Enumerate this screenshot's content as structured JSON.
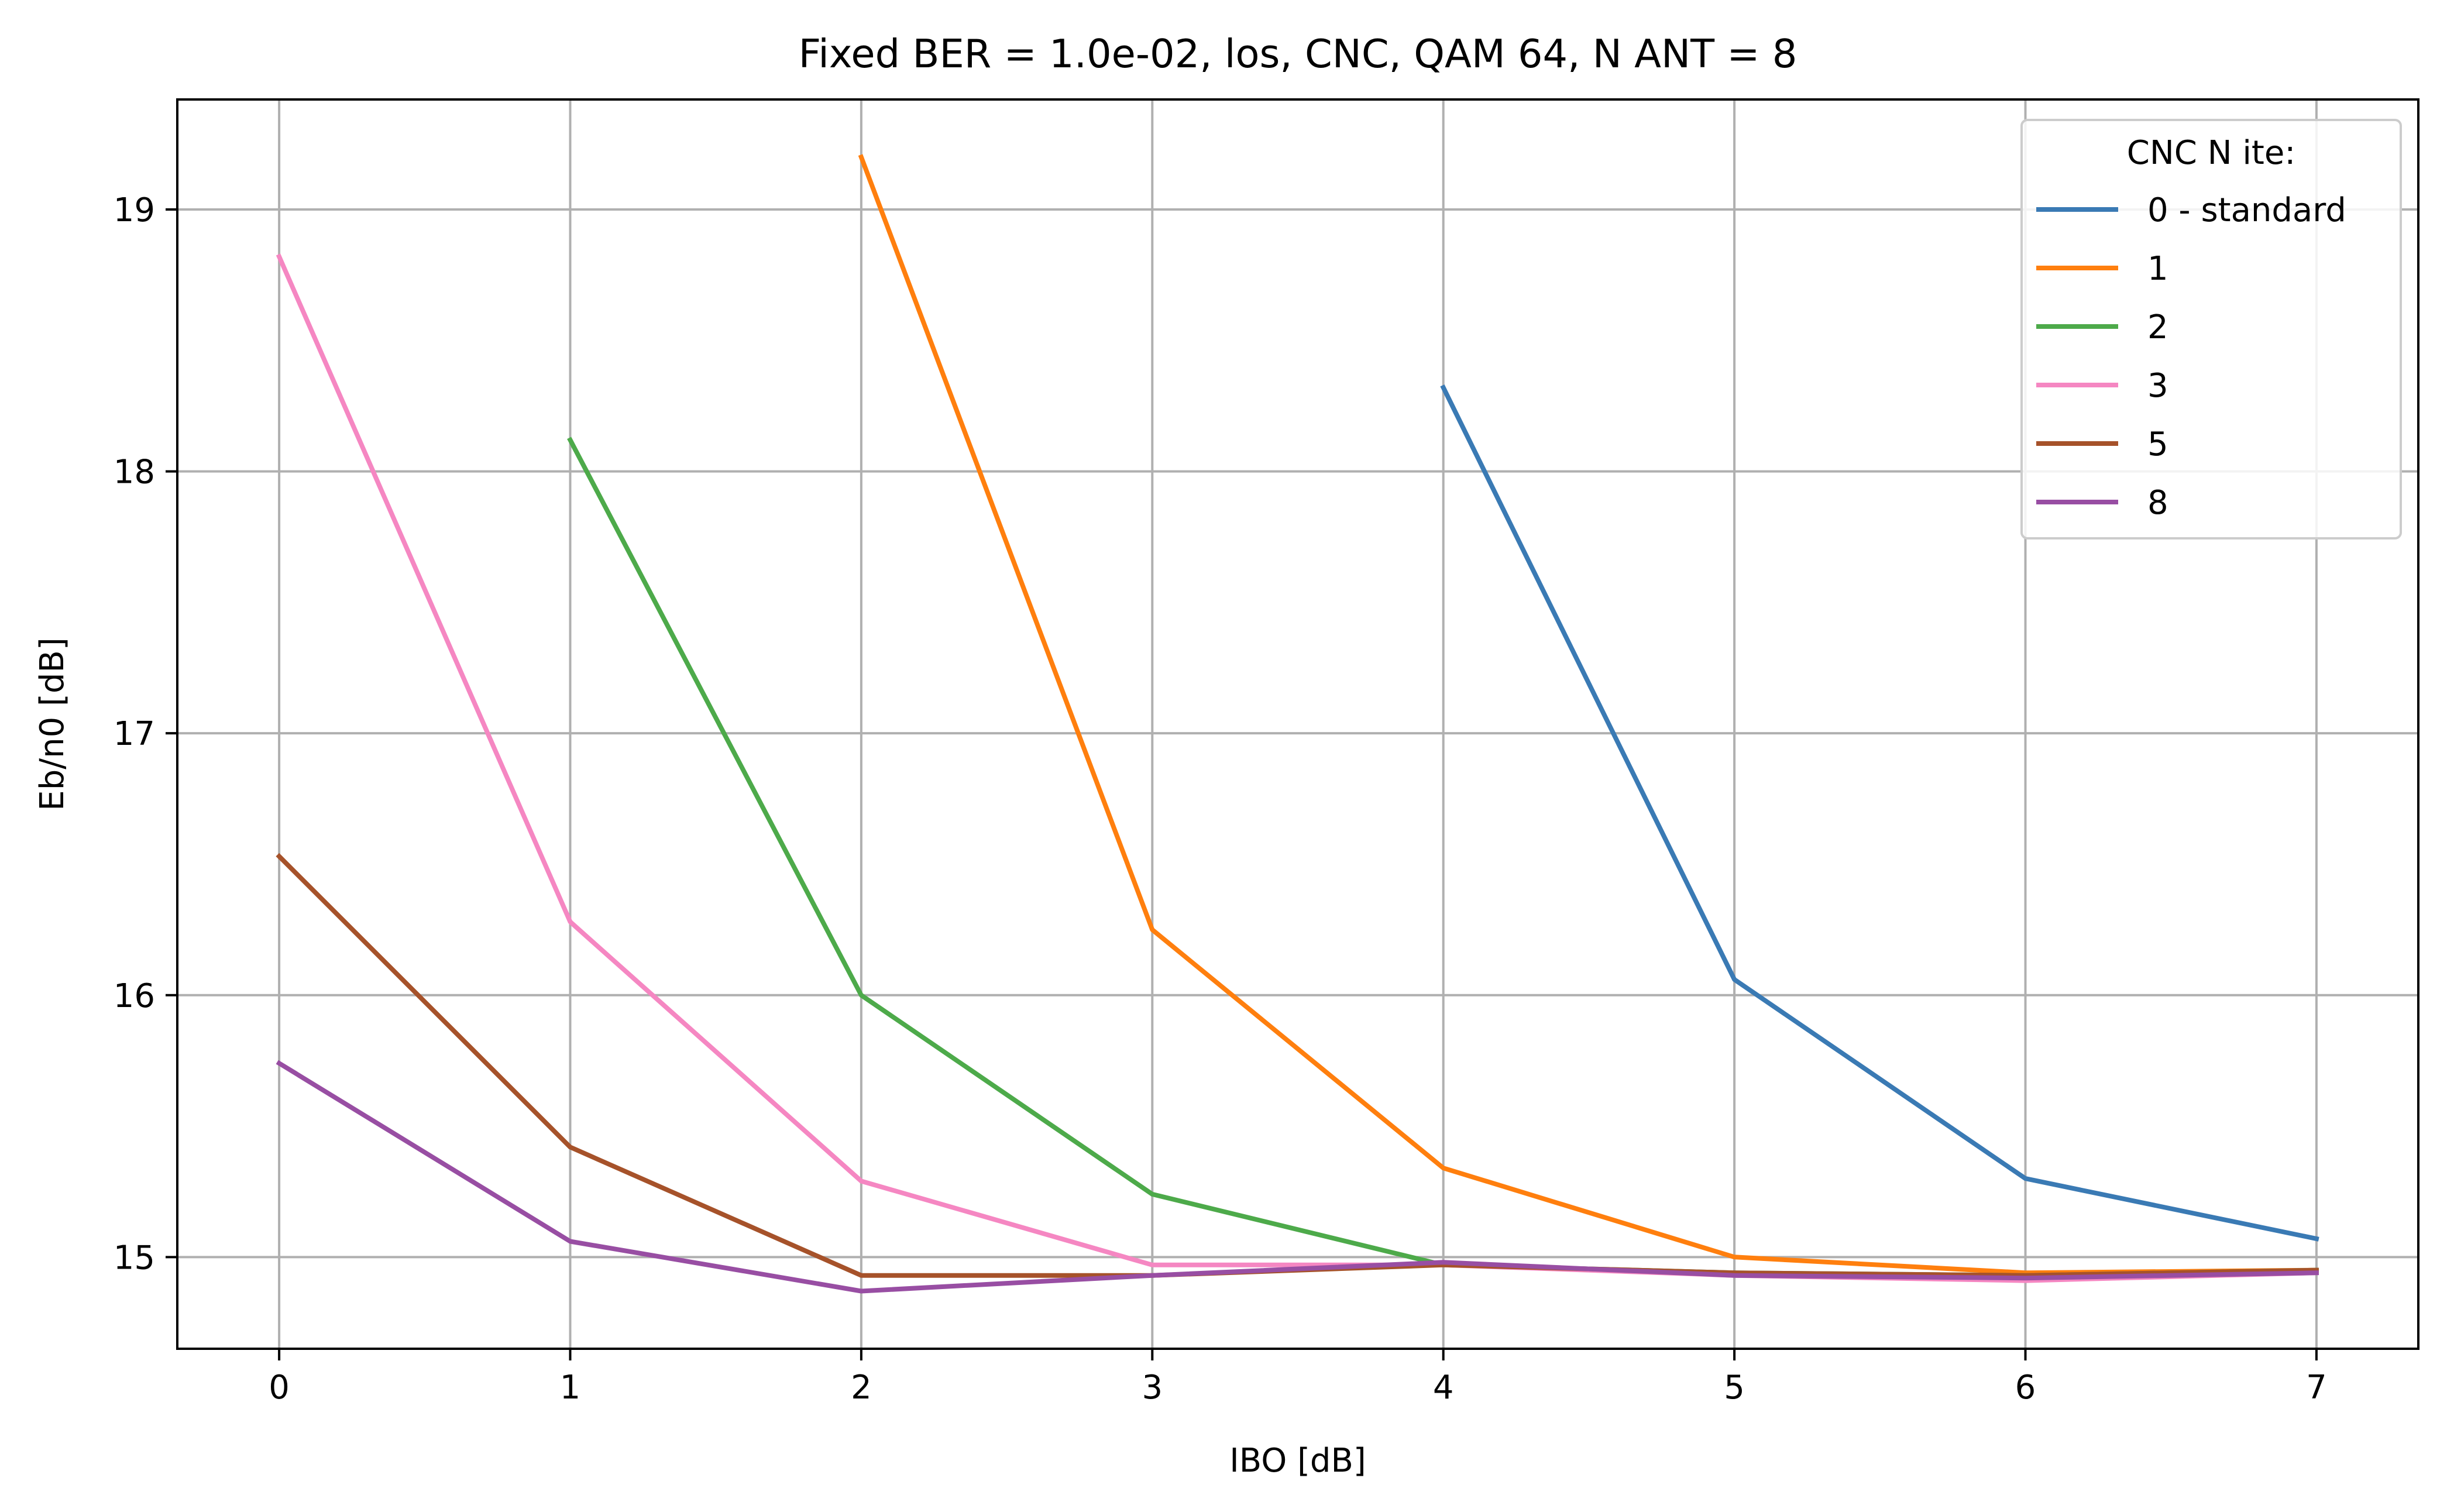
{
  "chart_data": {
    "type": "line",
    "title": "Fixed BER = 1.0e-02, los, CNC, QAM 64, N ANT = 8",
    "xlabel": "IBO [dB]",
    "ylabel": "Eb/n0 [dB]",
    "xlim": [
      -0.35,
      7.35
    ],
    "ylim": [
      14.65,
      19.42
    ],
    "xticks": [
      0,
      1,
      2,
      3,
      4,
      5,
      6,
      7
    ],
    "xtick_labels": [
      "0",
      "1",
      "2",
      "3",
      "4",
      "5",
      "6",
      "7"
    ],
    "yticks": [
      15,
      16,
      17,
      18,
      19
    ],
    "ytick_labels": [
      "15",
      "16",
      "17",
      "18",
      "19"
    ],
    "grid": true,
    "legend_title": "CNC N ite:",
    "legend_position": "top-right",
    "series": [
      {
        "name": "0 - standard",
        "color": "#3a7ab4",
        "x": [
          4,
          5,
          6,
          7
        ],
        "y": [
          18.32,
          16.06,
          15.3,
          15.07
        ]
      },
      {
        "name": "1",
        "color": "#ff7f0e",
        "x": [
          2,
          3,
          4,
          5,
          6,
          7
        ],
        "y": [
          19.2,
          16.25,
          15.34,
          15.0,
          14.94,
          14.95
        ]
      },
      {
        "name": "2",
        "color": "#4daa4a",
        "x": [
          1,
          2,
          3,
          4,
          5,
          6,
          7
        ],
        "y": [
          18.12,
          16.0,
          15.24,
          14.97,
          14.94,
          14.93,
          14.95
        ]
      },
      {
        "name": "3",
        "color": "#f587c2",
        "x": [
          0,
          1,
          2,
          3,
          4,
          5,
          6,
          7
        ],
        "y": [
          18.82,
          16.28,
          15.29,
          14.97,
          14.97,
          14.93,
          14.91,
          14.94
        ]
      },
      {
        "name": "5",
        "color": "#a6522a",
        "x": [
          0,
          1,
          2,
          3,
          4,
          5,
          6,
          7
        ],
        "y": [
          16.53,
          15.42,
          14.93,
          14.93,
          14.97,
          14.94,
          14.93,
          14.95
        ]
      },
      {
        "name": "8",
        "color": "#984ea3",
        "x": [
          0,
          1,
          2,
          3,
          4,
          5,
          6,
          7
        ],
        "y": [
          15.74,
          15.06,
          14.87,
          14.93,
          14.98,
          14.93,
          14.92,
          14.94
        ]
      }
    ]
  }
}
